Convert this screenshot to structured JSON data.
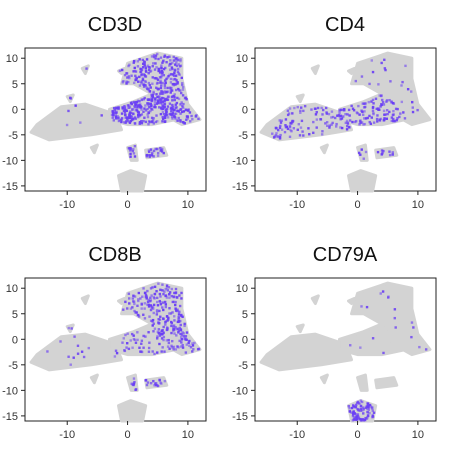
{
  "chart_data": [
    {
      "type": "scatter",
      "title": "CD3D",
      "xlim": [
        -17,
        13
      ],
      "ylim": [
        -16,
        12
      ],
      "xticks": [
        -10,
        0,
        10
      ],
      "yticks": [
        10,
        5,
        0,
        -5,
        -10,
        -15
      ],
      "xtick_labels": [
        "-10",
        "0",
        "10"
      ],
      "ytick_labels": [
        "10",
        "5",
        "0",
        "-5",
        "-10",
        "-15"
      ],
      "grid": false,
      "background_color": "#d3d3d3",
      "expression_color": "#6a3ff5",
      "expressing_clusters": [
        "T-cell cluster (upper right)",
        "central cluster",
        "small satellite clusters"
      ]
    },
    {
      "type": "scatter",
      "title": "CD4",
      "xlim": [
        -17,
        13
      ],
      "ylim": [
        -16,
        12
      ],
      "xticks": [
        -10,
        0,
        10
      ],
      "yticks": [
        10,
        5,
        0,
        -5,
        -10,
        -15
      ],
      "xtick_labels": [
        "-10",
        "0",
        "10"
      ],
      "ytick_labels": [
        "10",
        "5",
        "0",
        "-5",
        "-10",
        "-15"
      ],
      "grid": false,
      "background_color": "#d3d3d3",
      "expression_color": "#6a3ff5",
      "expressing_clusters": [
        "central cluster (sparse)",
        "left cluster (sparse)"
      ]
    },
    {
      "type": "scatter",
      "title": "CD8B",
      "xlim": [
        -17,
        13
      ],
      "ylim": [
        -16,
        12
      ],
      "xticks": [
        -10,
        0,
        10
      ],
      "yticks": [
        10,
        5,
        0,
        -5,
        -10,
        -15
      ],
      "xtick_labels": [
        "-10",
        "0",
        "10"
      ],
      "ytick_labels": [
        "10",
        "5",
        "0",
        "-5",
        "-10",
        "-15"
      ],
      "grid": false,
      "background_color": "#d3d3d3",
      "expression_color": "#6a3ff5",
      "expressing_clusters": [
        "T-cell cluster (upper right)",
        "small satellite clusters"
      ]
    },
    {
      "type": "scatter",
      "title": "CD79A",
      "xlim": [
        -17,
        13
      ],
      "ylim": [
        -16,
        12
      ],
      "xticks": [
        -10,
        0,
        10
      ],
      "yticks": [
        10,
        5,
        0,
        -5,
        -10,
        -15
      ],
      "xtick_labels": [
        "-10",
        "0",
        "10"
      ],
      "ytick_labels": [
        "10",
        "5",
        "0",
        "-5",
        "-10",
        "-15"
      ],
      "grid": false,
      "background_color": "#d3d3d3",
      "expression_color": "#6a3ff5",
      "expressing_clusters": [
        "B-cell cluster (bottom)"
      ]
    }
  ]
}
